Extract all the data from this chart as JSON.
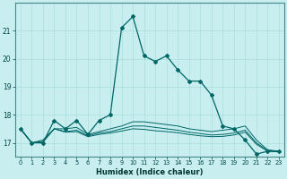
{
  "xlabel": "Humidex (Indice chaleur)",
  "background_color": "#c8eef0",
  "grid_color": "#aadddd",
  "line_color": "#006666",
  "x_values": [
    0,
    1,
    2,
    3,
    4,
    5,
    6,
    7,
    8,
    9,
    10,
    11,
    12,
    13,
    14,
    15,
    16,
    17,
    18,
    19,
    20,
    21,
    22,
    23
  ],
  "series": [
    [
      17.5,
      17.0,
      17.0,
      17.8,
      17.5,
      17.8,
      17.3,
      17.8,
      18.0,
      21.1,
      21.5,
      20.1,
      19.9,
      20.1,
      19.6,
      19.2,
      19.2,
      18.7,
      17.6,
      17.5,
      17.1,
      16.6,
      16.7,
      16.7
    ],
    [
      17.5,
      17.0,
      17.1,
      17.5,
      17.5,
      17.55,
      17.3,
      17.4,
      17.5,
      17.6,
      17.75,
      17.75,
      17.7,
      17.65,
      17.6,
      17.5,
      17.45,
      17.4,
      17.45,
      17.5,
      17.6,
      17.1,
      16.75,
      16.7
    ],
    [
      17.5,
      17.0,
      17.05,
      17.5,
      17.4,
      17.45,
      17.25,
      17.35,
      17.4,
      17.5,
      17.6,
      17.6,
      17.55,
      17.5,
      17.45,
      17.38,
      17.33,
      17.28,
      17.3,
      17.35,
      17.45,
      17.0,
      16.72,
      16.7
    ],
    [
      17.5,
      17.0,
      17.02,
      17.5,
      17.38,
      17.4,
      17.22,
      17.3,
      17.35,
      17.42,
      17.5,
      17.48,
      17.43,
      17.4,
      17.36,
      17.3,
      17.25,
      17.22,
      17.23,
      17.28,
      17.38,
      16.95,
      16.7,
      16.68
    ]
  ],
  "ylim": [
    16.5,
    22.0
  ],
  "yticks": [
    17,
    18,
    19,
    20,
    21
  ],
  "xticks": [
    0,
    1,
    2,
    3,
    4,
    5,
    6,
    7,
    8,
    9,
    10,
    11,
    12,
    13,
    14,
    15,
    16,
    17,
    18,
    19,
    20,
    21,
    22,
    23
  ]
}
